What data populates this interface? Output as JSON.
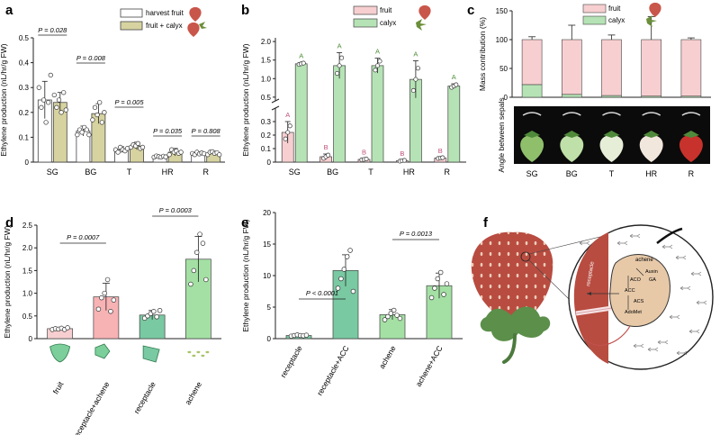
{
  "figure": {
    "title": "",
    "colors": {
      "harvest_fruit": "#ffffff",
      "fruit_calyx": "#d6d3a0",
      "fruit_pink": "#f7cfd0",
      "calyx_green": "#b5e3b5",
      "bar_edge": "#444444",
      "berry_red": "#b84c40",
      "berry_dark": "#9a3b32",
      "leaf_green": "#5b8f4a",
      "cell_tan": "#e7c9a8",
      "diagram_line": "#333333"
    }
  },
  "chart_data": [
    {
      "panel": "a",
      "type": "bar",
      "title": "",
      "xlabel": "",
      "ylabel": "Ethylene production (nL/hr/g FW)",
      "ylim": [
        0,
        0.5
      ],
      "yticks": [
        "0",
        "0.1",
        "0.2",
        "0.3",
        "0.4",
        "0.5"
      ],
      "categories": [
        "SG",
        "BG",
        "T",
        "HR",
        "R"
      ],
      "series": [
        {
          "name": "harvest fruit",
          "values": [
            0.25,
            0.125,
            0.05,
            0.022,
            0.035
          ],
          "errors": [
            0.075,
            0.02,
            0.012,
            0.005,
            0.005
          ],
          "points": [
            [
              0.3,
              0.22,
              0.25,
              0.16,
              0.24,
              0.35
            ],
            [
              0.11,
              0.13,
              0.12,
              0.14,
              0.13,
              0.11
            ],
            [
              0.05,
              0.04,
              0.06,
              0.05,
              0.045,
              0.055
            ],
            [
              0.02,
              0.025,
              0.022,
              0.02,
              0.024,
              0.021
            ],
            [
              0.035,
              0.03,
              0.04,
              0.033,
              0.037,
              0.034
            ]
          ]
        },
        {
          "name": "fruit + calyx",
          "values": [
            0.24,
            0.195,
            0.065,
            0.04,
            0.037
          ],
          "errors": [
            0.04,
            0.04,
            0.015,
            0.015,
            0.007
          ],
          "points": [
            [
              0.27,
              0.22,
              0.25,
              0.2,
              0.28,
              0.21
            ],
            [
              0.17,
              0.22,
              0.19,
              0.24,
              0.16,
              0.2
            ],
            [
              0.06,
              0.07,
              0.065,
              0.075,
              0.055,
              0.06
            ],
            [
              0.03,
              0.05,
              0.04,
              0.045,
              0.035,
              0.04
            ],
            [
              0.03,
              0.04,
              0.042,
              0.035,
              0.038,
              0.03
            ]
          ]
        }
      ],
      "annotations": [
        {
          "label": "P = 0.028",
          "category": "SG"
        },
        {
          "label": "P = 0.008",
          "category": "BG"
        },
        {
          "label": "P = 0.005",
          "category": "T"
        },
        {
          "label": "P = 0.035",
          "category": "HR"
        },
        {
          "label": "P = 0.808",
          "category": "R"
        }
      ],
      "legend": "top-right"
    },
    {
      "panel": "b",
      "type": "bar",
      "title": "",
      "xlabel": "",
      "ylabel": "Ethylene production (nL/hr/g FW)",
      "ylim_lower": [
        0,
        0.4
      ],
      "ylim_upper": [
        0.4,
        2.1
      ],
      "axis_break": true,
      "yticks_lower": [
        "0",
        "0.1",
        "0.2",
        "0.3"
      ],
      "yticks_upper": [
        "0.5",
        "1.0",
        "1.5",
        "2.0"
      ],
      "categories": [
        "SG",
        "BG",
        "T",
        "HR",
        "R"
      ],
      "series": [
        {
          "name": "fruit",
          "values": [
            0.22,
            0.04,
            0.02,
            0.01,
            0.03
          ],
          "errors": [
            0.08,
            0.02,
            0.005,
            0.005,
            0.005
          ],
          "letters": [
            "A",
            "B",
            "B",
            "B",
            "B"
          ]
        },
        {
          "name": "calyx",
          "values": [
            1.4,
            1.35,
            1.35,
            0.98,
            0.8
          ],
          "errors": [
            0.03,
            0.35,
            0.2,
            0.5,
            0.06
          ],
          "letters": [
            "A",
            "A",
            "A",
            "A",
            "A"
          ]
        }
      ],
      "legend": "top-right"
    },
    {
      "panel": "c",
      "type": "bar",
      "title": "",
      "xlabel": "",
      "ylabel": "Mass contribution (%)",
      "ylim": [
        0,
        150
      ],
      "yticks": [
        "0",
        "50",
        "100",
        "150"
      ],
      "categories": [
        "SG",
        "BG",
        "T",
        "HR",
        "R"
      ],
      "stacked": true,
      "series": [
        {
          "name": "fruit",
          "values": [
            78,
            95,
            97,
            98,
            98
          ],
          "errors": [
            5,
            25,
            8,
            40,
            3
          ]
        },
        {
          "name": "calyx",
          "values": [
            22,
            5,
            3,
            2,
            2
          ]
        }
      ],
      "image_label": "Angle between sepals",
      "legend": "top-right"
    },
    {
      "panel": "d",
      "type": "bar",
      "title": "",
      "xlabel": "",
      "ylabel": "Ethylene production (nL/hr/g FW)",
      "ylim": [
        0,
        2.5
      ],
      "yticks": [
        "0",
        "0.5",
        "1.0",
        "1.5",
        "2.0",
        "2.5"
      ],
      "categories": [
        "fruit",
        "receptacle+achene",
        "receptacle",
        "achene"
      ],
      "colors": [
        "#f7cfd0",
        "#f7b2b4",
        "#79c9a2",
        "#a4e0a4"
      ],
      "values": [
        0.22,
        0.92,
        0.52,
        1.75
      ],
      "errors": [
        0.02,
        0.3,
        0.1,
        0.5
      ],
      "points": [
        [
          0.2,
          0.22,
          0.21,
          0.23,
          0.2,
          0.24
        ],
        [
          0.65,
          0.9,
          1.0,
          1.3,
          0.6,
          0.85
        ],
        [
          0.45,
          0.5,
          0.55,
          0.6,
          0.48,
          0.62
        ],
        [
          1.2,
          1.5,
          1.9,
          2.3,
          2.1,
          1.3
        ]
      ],
      "annotations": [
        {
          "label": "P = 0.0007",
          "from": "fruit",
          "to": "receptacle+achene"
        },
        {
          "label": "P = 0.0003",
          "from": "receptacle",
          "to": "achene"
        }
      ]
    },
    {
      "panel": "e",
      "type": "bar",
      "title": "",
      "xlabel": "",
      "ylabel": "Ethylene production (nL/hr/g FW)",
      "ylim": [
        0,
        20
      ],
      "yticks": [
        "0",
        "5",
        "10",
        "15",
        "20"
      ],
      "categories": [
        "receptacle",
        "receptacle+ACC",
        "achene",
        "achene+ACC"
      ],
      "colors": [
        "#79c9a2",
        "#79c9a2",
        "#a4e0a4",
        "#a4e0a4"
      ],
      "values": [
        0.5,
        10.8,
        3.8,
        8.4
      ],
      "errors": [
        0.2,
        2.5,
        0.8,
        2.0
      ],
      "points": [
        [
          0.4,
          0.5,
          0.6,
          0.5,
          0.45,
          0.55
        ],
        [
          8.0,
          9.5,
          11.0,
          13.0,
          14.0,
          7.5
        ],
        [
          3.0,
          3.5,
          4.0,
          4.5,
          3.7,
          3.2
        ],
        [
          6.5,
          8.0,
          9.5,
          10.5,
          7.0,
          8.7
        ]
      ],
      "annotations": [
        {
          "label": "P < 0.0001",
          "from": "receptacle",
          "to": "receptacle+ACC"
        },
        {
          "label": "P = 0.0013",
          "from": "achene",
          "to": "achene+ACC"
        }
      ]
    }
  ],
  "panels": {
    "a": {
      "letter": "a",
      "legend": [
        "harvest fruit",
        "fruit + calyx"
      ]
    },
    "b": {
      "letter": "b",
      "legend": [
        "fruit",
        "calyx"
      ]
    },
    "c": {
      "letter": "c",
      "legend": [
        "fruit",
        "calyx"
      ]
    },
    "d": {
      "letter": "d"
    },
    "e": {
      "letter": "e"
    },
    "f": {
      "letter": "f",
      "labels": {
        "achene": "achene",
        "receptacle": "receptacle",
        "auxin": "Auxin",
        "ga": "GA",
        "aco": "ACO",
        "acc": "ACC",
        "acs": "ACS",
        "adomet": "AdoMet",
        "ethylene_arrow": "ethylene"
      }
    }
  },
  "icons": [
    "strawberry-icon",
    "calyx-icon",
    "fruit-sketch-icon",
    "achene-sketch-icon",
    "receptacle-sketch-icon",
    "ethylene-molecule-icon"
  ]
}
